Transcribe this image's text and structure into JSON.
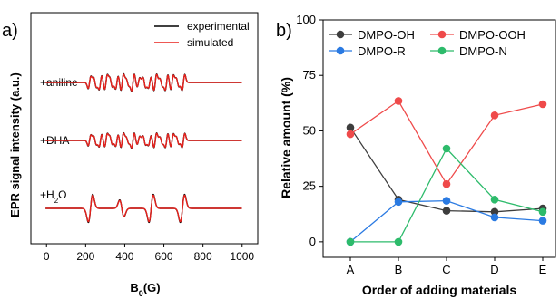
{
  "panels": {
    "a": {
      "label": "a)",
      "ylabel": "EPR signal intensity (a.u.)",
      "xlabel_base": "B",
      "xlabel_sub": "0",
      "xlabel_tail": "(G)",
      "xticks": [
        "0",
        "200",
        "400",
        "600",
        "800",
        "1000"
      ],
      "legend": [
        "experimental",
        "simulated"
      ],
      "trace_labels": [
        {
          "main": "+aniline",
          "sub": "",
          "tail": ""
        },
        {
          "main": "+DHA",
          "sub": "",
          "tail": ""
        },
        {
          "main": "+H",
          "sub": "2",
          "tail": "O"
        },
        {
          "main": "",
          "sub": "2",
          "tail": ""
        }
      ]
    },
    "b": {
      "label": "b)"
    }
  },
  "colors": {
    "experimental": "#000000",
    "simulated": "#e8211c",
    "dmpo_oh": "#3d3d3d",
    "dmpo_ooh": "#ef4a4a",
    "dmpo_r": "#2a7ae2",
    "dmpo_n": "#2dbb6b"
  },
  "chart_data": [
    {
      "type": "line",
      "panel": "a",
      "xlabel": "B0(G)",
      "ylabel": "EPR signal intensity (a.u.)",
      "xlim": [
        -80,
        1080
      ],
      "xticks": [
        0,
        200,
        400,
        600,
        800,
        1000
      ],
      "series": [
        {
          "name": "experimental",
          "color": "#000000"
        },
        {
          "name": "simulated",
          "color": "#e8211c"
        }
      ],
      "traces": [
        "+aniline",
        "+DHA",
        "+H2O2"
      ],
      "spectra": [
        {
          "trace": "+aniline",
          "baseline_x": [
            -5,
            1000
          ],
          "line_positions": [
            220,
            248,
            276,
            304,
            330,
            360,
            387,
            414,
            442,
            470,
            500,
            528,
            556,
            586,
            614,
            642,
            670,
            700
          ]
        },
        {
          "trace": "+DHA",
          "baseline_x": [
            -5,
            1000
          ],
          "line_positions": [
            220,
            248,
            276,
            304,
            330,
            360,
            387,
            414,
            442,
            470,
            500,
            528,
            556,
            586,
            614,
            642,
            670,
            700
          ]
        },
        {
          "trace": "+H2O2",
          "baseline_x": [
            -5,
            1000
          ],
          "line_positions": [
            225,
            385,
            535,
            695
          ]
        }
      ]
    },
    {
      "type": "line",
      "panel": "b",
      "xlabel": "Order of adding materials",
      "ylabel": "Relative amount (%)",
      "categories": [
        "A",
        "B",
        "C",
        "D",
        "E"
      ],
      "ylim": [
        0,
        100
      ],
      "yticks": [
        0,
        25,
        50,
        75,
        100
      ],
      "legend_position": "top",
      "series": [
        {
          "name": "DMPO-OH",
          "color": "#3d3d3d",
          "values": [
            51.5,
            19,
            14,
            13.5,
            15
          ]
        },
        {
          "name": "DMPO-OOH",
          "color": "#ef4a4a",
          "values": [
            48.5,
            63.5,
            26,
            57,
            62
          ]
        },
        {
          "name": "DMPO-R",
          "color": "#2a7ae2",
          "values": [
            0,
            18,
            18.5,
            11,
            9.5
          ]
        },
        {
          "name": "DMPO-N",
          "color": "#2dbb6b",
          "values": [
            0,
            0,
            42,
            19,
            13.5
          ]
        }
      ]
    }
  ]
}
